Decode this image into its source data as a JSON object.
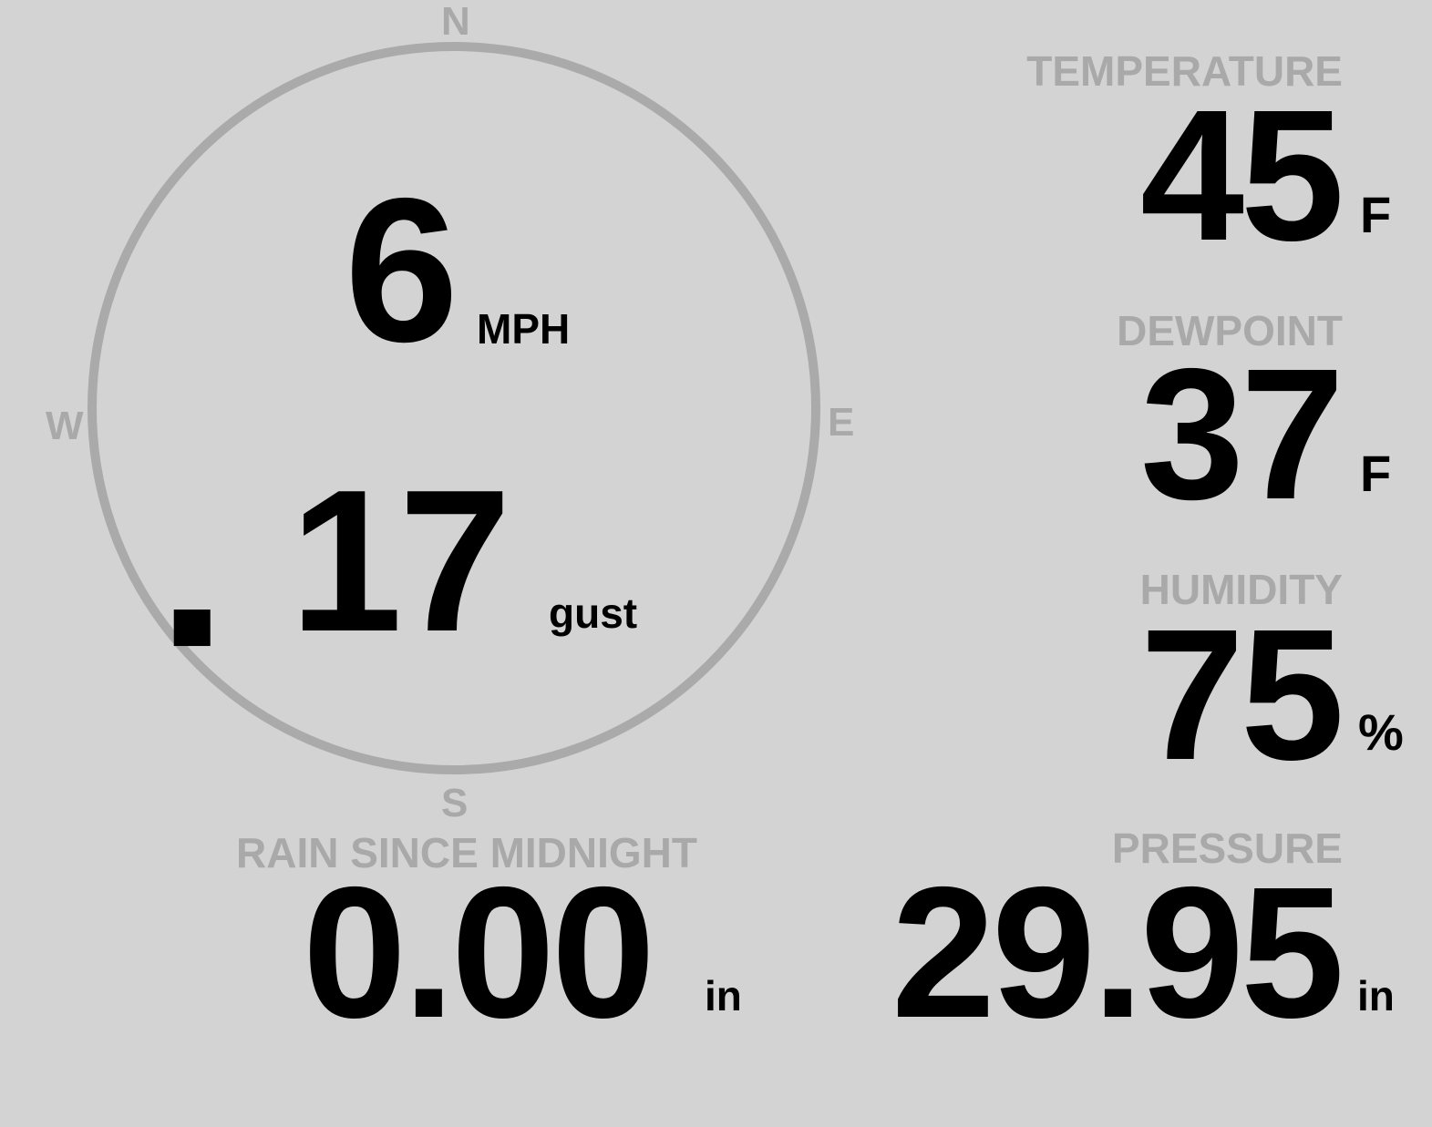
{
  "wind": {
    "speed": "6",
    "speed_unit": "MPH",
    "gust": "17",
    "gust_label": "gust",
    "direction_deg": 230,
    "cardinals": {
      "n": "N",
      "e": "E",
      "s": "S",
      "w": "W"
    }
  },
  "temperature": {
    "label": "TEMPERATURE",
    "value": "45",
    "unit": "F"
  },
  "dewpoint": {
    "label": "DEWPOINT",
    "value": "37",
    "unit": "F"
  },
  "humidity": {
    "label": "HUMIDITY",
    "value": "75",
    "unit": "%"
  },
  "rain": {
    "label": "RAIN SINCE MIDNIGHT",
    "value": "0.00",
    "unit": "in"
  },
  "pressure": {
    "label": "PRESSURE",
    "value": "29.95",
    "unit": "in"
  },
  "colors": {
    "background": "#d3d3d3",
    "muted": "#a9a9a9",
    "text": "#000000"
  }
}
